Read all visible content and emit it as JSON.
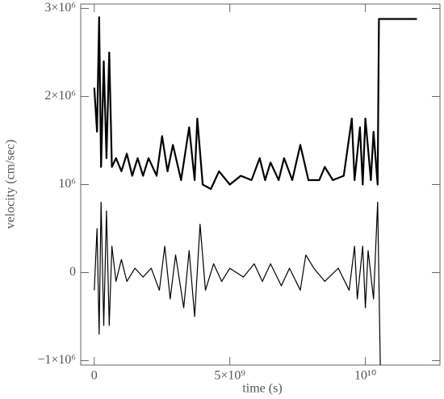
{
  "chart_data": {
    "type": "line",
    "x_label": "time (s)",
    "y_label": "velocity (cm/sec)",
    "xlim": [
      -500000000,
      12750000000
    ],
    "ylim": [
      -1050000,
      3050000
    ],
    "xticks": [
      0,
      {
        "value": 5000000000,
        "label": "5×10⁹"
      },
      {
        "value": 10000000000,
        "label": "10¹⁰"
      }
    ],
    "yticks": [
      {
        "value": -1000000,
        "label": "−1×10⁶"
      },
      0,
      {
        "value": 1000000,
        "label": "10⁶"
      },
      {
        "value": 2000000,
        "label": "2×10⁶"
      },
      {
        "value": 3000000,
        "label": "3×10⁶"
      }
    ],
    "series": [
      {
        "color": "#000000",
        "width": 2.2,
        "x": [
          0,
          100000000,
          180000000,
          250000000,
          350000000,
          450000000,
          550000000,
          650000000,
          800000000,
          1000000000,
          1200000000,
          1400000000,
          1600000000,
          1800000000,
          2000000000,
          2300000000,
          2500000000,
          2700000000,
          2900000000,
          3200000000,
          3500000000,
          3700000000,
          3800000000,
          4000000000,
          4300000000,
          4600000000,
          5000000000,
          5400000000,
          5800000000,
          6100000000,
          6300000000,
          6500000000,
          6800000000,
          7000000000,
          7300000000,
          7600000000,
          7900000000,
          8300000000,
          8500000000,
          8800000000,
          9200000000,
          9500000000,
          9600000000,
          9800000000,
          9900000000,
          10000000000,
          10200000000,
          10300000000,
          10450000000,
          10500000000,
          11900000000
        ],
        "values": [
          2100000,
          1600000,
          2900000,
          1200000,
          2400000,
          1300000,
          2500000,
          1200000,
          1300000,
          1150000,
          1350000,
          1100000,
          1300000,
          1100000,
          1300000,
          1100000,
          1550000,
          1150000,
          1450000,
          1050000,
          1650000,
          1050000,
          1750000,
          1000000,
          950000,
          1150000,
          1000000,
          1100000,
          1050000,
          1300000,
          1050000,
          1250000,
          1050000,
          1300000,
          1050000,
          1450000,
          1050000,
          1050000,
          1200000,
          1050000,
          1100000,
          1750000,
          1050000,
          1650000,
          1000000,
          1750000,
          1050000,
          1600000,
          1000000,
          2880000,
          2880000
        ]
      },
      {
        "color": "#000000",
        "width": 1.2,
        "x": [
          0,
          100000000,
          180000000,
          250000000,
          350000000,
          450000000,
          550000000,
          650000000,
          800000000,
          1000000000,
          1200000000,
          1500000000,
          1800000000,
          2100000000,
          2400000000,
          2600000000,
          2800000000,
          3000000000,
          3300000000,
          3500000000,
          3700000000,
          3900000000,
          4100000000,
          4400000000,
          4700000000,
          5000000000,
          5500000000,
          5900000000,
          6200000000,
          6500000000,
          6900000000,
          7200000000,
          7600000000,
          7800000000,
          8100000000,
          8500000000,
          9000000000,
          9400000000,
          9600000000,
          9700000000,
          9900000000,
          10000000000,
          10100000000,
          10300000000,
          10450000000,
          10550000000
        ],
        "values": [
          -200000,
          500000,
          -700000,
          800000,
          -600000,
          700000,
          -600000,
          300000,
          -100000,
          150000,
          -100000,
          50000,
          -50000,
          50000,
          -200000,
          300000,
          -300000,
          200000,
          -400000,
          250000,
          -500000,
          550000,
          -200000,
          100000,
          -100000,
          50000,
          -50000,
          100000,
          -100000,
          100000,
          -150000,
          50000,
          -200000,
          200000,
          50000,
          -100000,
          50000,
          -200000,
          300000,
          -300000,
          300000,
          -400000,
          250000,
          -300000,
          800000,
          -1050000
        ]
      }
    ]
  }
}
